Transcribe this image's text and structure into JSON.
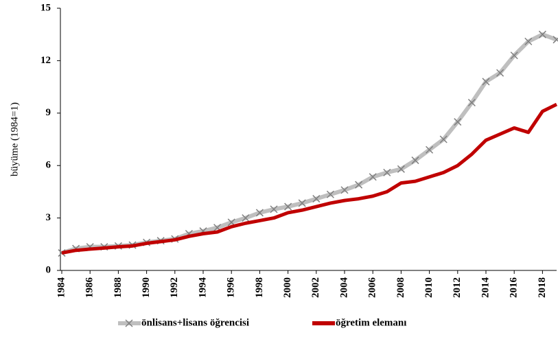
{
  "chart_data": {
    "type": "line",
    "y_label": "büyüme (1984=1)",
    "x": [
      1984,
      1985,
      1986,
      1987,
      1988,
      1989,
      1990,
      1991,
      1992,
      1993,
      1994,
      1995,
      1996,
      1997,
      1998,
      1999,
      2000,
      2001,
      2002,
      2003,
      2004,
      2005,
      2006,
      2007,
      2008,
      2009,
      2010,
      2011,
      2012,
      2013,
      2014,
      2015,
      2016,
      2017,
      2018,
      2019
    ],
    "series": [
      {
        "name": "önlisans+lisans öğrencisi",
        "color": "#bfbfbf",
        "marker_color": "#7f7f7f",
        "values": [
          1.0,
          1.25,
          1.35,
          1.35,
          1.4,
          1.45,
          1.6,
          1.7,
          1.8,
          2.1,
          2.25,
          2.45,
          2.75,
          3.0,
          3.3,
          3.5,
          3.65,
          3.85,
          4.1,
          4.35,
          4.6,
          4.9,
          5.35,
          5.6,
          5.8,
          6.3,
          6.9,
          7.5,
          8.5,
          9.6,
          10.8,
          11.3,
          12.3,
          13.1,
          13.5,
          13.2
        ]
      },
      {
        "name": "öğretim elemanı",
        "color": "#c00000",
        "values": [
          1.0,
          1.15,
          1.22,
          1.28,
          1.35,
          1.4,
          1.55,
          1.65,
          1.75,
          1.95,
          2.1,
          2.2,
          2.5,
          2.7,
          2.85,
          3.0,
          3.3,
          3.45,
          3.65,
          3.85,
          4.0,
          4.1,
          4.25,
          4.5,
          5.0,
          5.1,
          5.35,
          5.6,
          6.0,
          6.65,
          7.45,
          7.8,
          8.15,
          7.9,
          9.1,
          9.5
        ]
      }
    ],
    "xlim": [
      1984,
      2019
    ],
    "xticks": [
      1984,
      1986,
      1988,
      1990,
      1992,
      1994,
      1996,
      1998,
      2000,
      2002,
      2004,
      2006,
      2008,
      2010,
      2012,
      2014,
      2016,
      2018
    ],
    "ylim": [
      0,
      15
    ],
    "yticks": [
      0,
      3,
      6,
      9,
      12,
      15
    ],
    "legend": "bottom"
  }
}
